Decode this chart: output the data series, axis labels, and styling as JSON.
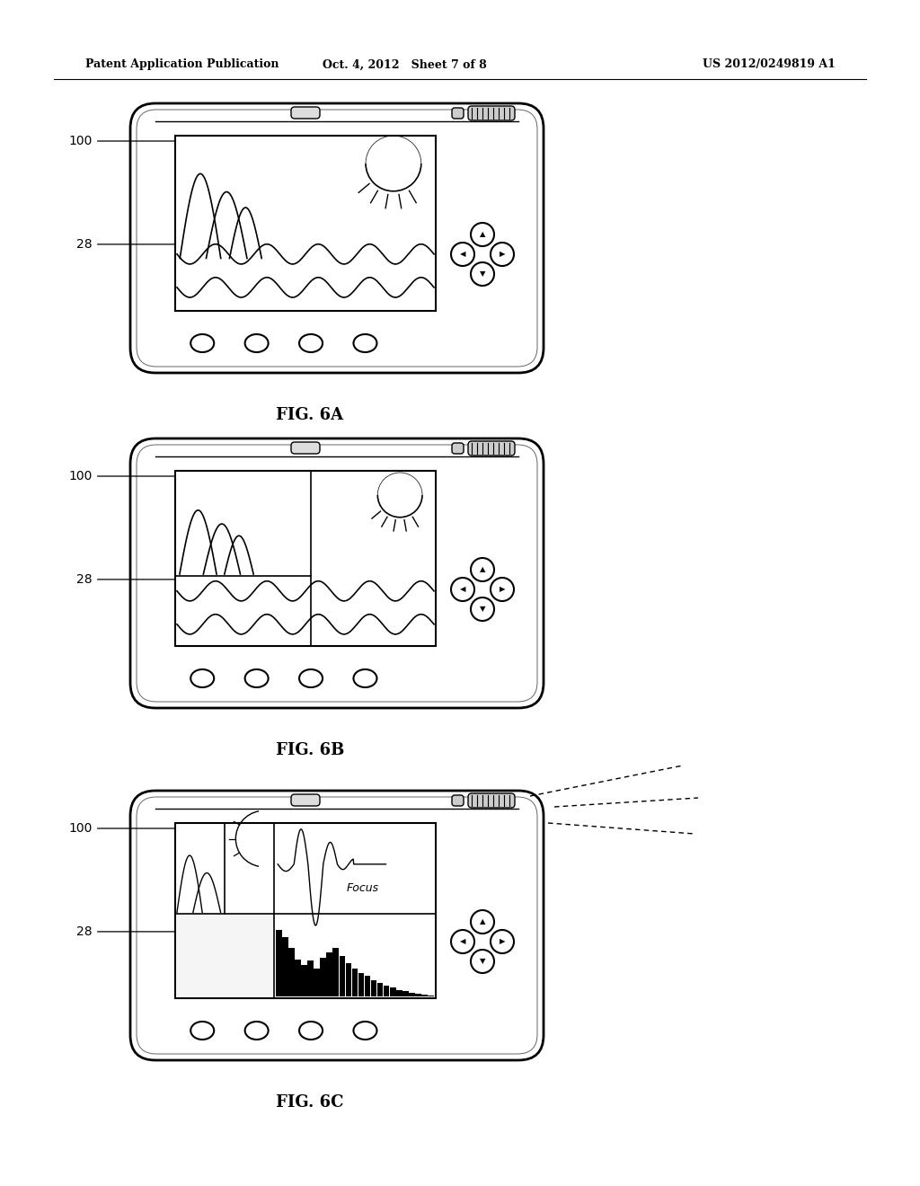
{
  "title_left": "Patent Application Publication",
  "title_center": "Oct. 4, 2012   Sheet 7 of 8",
  "title_right": "US 2012/0249819 A1",
  "fig6a_label": "FIG. 6A",
  "fig6b_label": "FIG. 6B",
  "fig6c_label": "FIG. 6C",
  "label_100": "100",
  "label_28": "28",
  "bg_color": "#ffffff"
}
